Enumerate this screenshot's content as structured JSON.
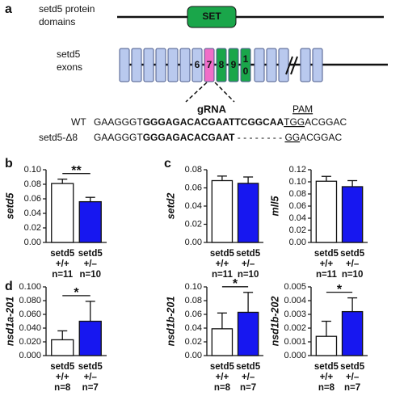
{
  "panel_labels": [
    "a",
    "b",
    "c",
    "d"
  ],
  "diagram": {
    "protein_label": [
      "setd5 protein",
      "domains"
    ],
    "domain": "SET",
    "exon_label": [
      "setd5",
      "exons"
    ],
    "exon_numbers": [
      "6",
      "7",
      "8",
      "9"
    ],
    "exon_10": [
      "1",
      "0"
    ],
    "grna": "gRNA",
    "pam": "PAM",
    "wt_label": "WT",
    "wt_sequence": [
      "GAAGGGT",
      "GGGAGACACGAATTCGGCAA",
      "TGG",
      "ACGGAC"
    ],
    "mut_label": "setd5-Δ8",
    "mut_sequence": [
      "GAAGGGT",
      "GGGAGACACGAAT",
      " - - - - - - - - ",
      "GG",
      "ACGGAC"
    ]
  },
  "chart_data": [
    {
      "type": "bar",
      "ylabel": "setd5",
      "categories": [
        [
          "setd5",
          "+/+",
          "n=11"
        ],
        [
          "setd5",
          "+/–",
          "n=10"
        ]
      ],
      "values": [
        0.081,
        0.056
      ],
      "errors": [
        0.006,
        0.006
      ],
      "colors": [
        "#ffffff",
        "#1717f0"
      ],
      "significance": "**",
      "ylim": [
        0,
        0.1
      ],
      "yticks": [
        {
          "value": 0,
          "label": "0.00"
        },
        {
          "value": 0.02,
          "label": "0.02"
        },
        {
          "value": 0.04,
          "label": "0.04"
        },
        {
          "value": 0.06,
          "label": "0.06"
        },
        {
          "value": 0.08,
          "label": "0.08"
        },
        {
          "value": 0.1,
          "label": "0.10"
        }
      ]
    },
    {
      "type": "bar",
      "ylabel": "setd2",
      "categories": [
        [
          "setd5",
          "+/+",
          "n=11"
        ],
        [
          "setd5",
          "+/–",
          "n=10"
        ]
      ],
      "values": [
        0.068,
        0.065
      ],
      "errors": [
        0.005,
        0.007
      ],
      "colors": [
        "#ffffff",
        "#1717f0"
      ],
      "ylim": [
        0,
        0.08
      ],
      "yticks": [
        {
          "value": 0,
          "label": "0.00"
        },
        {
          "value": 0.02,
          "label": "0.02"
        },
        {
          "value": 0.04,
          "label": "0.04"
        },
        {
          "value": 0.06,
          "label": "0.06"
        },
        {
          "value": 0.08,
          "label": "0.08"
        }
      ]
    },
    {
      "type": "bar",
      "ylabel": "mll5",
      "categories": [
        [
          "setd5",
          "+/+",
          "n=11"
        ],
        [
          "setd5",
          "+/–",
          "n=10"
        ]
      ],
      "values": [
        0.101,
        0.092
      ],
      "errors": [
        0.008,
        0.01
      ],
      "colors": [
        "#ffffff",
        "#1717f0"
      ],
      "ylim": [
        0,
        0.12
      ],
      "yticks": [
        {
          "value": 0,
          "label": "0.00"
        },
        {
          "value": 0.02,
          "label": "0.02"
        },
        {
          "value": 0.04,
          "label": "0.04"
        },
        {
          "value": 0.06,
          "label": "0.06"
        },
        {
          "value": 0.08,
          "label": "0.08"
        },
        {
          "value": 0.1,
          "label": "0.10"
        },
        {
          "value": 0.12,
          "label": "0.12"
        }
      ]
    },
    {
      "type": "bar",
      "ylabel": "nsd1a-201",
      "categories": [
        [
          "setd5",
          "+/+",
          "n=8"
        ],
        [
          "setd5",
          "+/–",
          "n=7"
        ]
      ],
      "values": [
        0.023,
        0.05
      ],
      "errors": [
        0.013,
        0.029
      ],
      "colors": [
        "#ffffff",
        "#1717f0"
      ],
      "significance": "*",
      "ylim": [
        0,
        0.1
      ],
      "yticks": [
        {
          "value": 0,
          "label": "0.000"
        },
        {
          "value": 0.02,
          "label": "0.020"
        },
        {
          "value": 0.04,
          "label": "0.040"
        },
        {
          "value": 0.06,
          "label": "0.060"
        },
        {
          "value": 0.08,
          "label": "0.080"
        },
        {
          "value": 0.1,
          "label": "0.100"
        }
      ]
    },
    {
      "type": "bar",
      "ylabel": "nsd1b-201",
      "categories": [
        [
          "setd5",
          "+/+",
          "n=8"
        ],
        [
          "setd5",
          "+/–",
          "n=7"
        ]
      ],
      "values": [
        0.039,
        0.063
      ],
      "errors": [
        0.023,
        0.029
      ],
      "colors": [
        "#ffffff",
        "#1717f0"
      ],
      "significance": "*",
      "ylim": [
        0,
        0.1
      ],
      "yticks": [
        {
          "value": 0,
          "label": "0.00"
        },
        {
          "value": 0.02,
          "label": "0.02"
        },
        {
          "value": 0.04,
          "label": "0.04"
        },
        {
          "value": 0.06,
          "label": "0.06"
        },
        {
          "value": 0.08,
          "label": "0.08"
        },
        {
          "value": 0.1,
          "label": "0.10"
        }
      ]
    },
    {
      "type": "bar",
      "ylabel": "nsd1b-202",
      "categories": [
        [
          "setd5",
          "+/+",
          "n=8"
        ],
        [
          "setd5",
          "+/–",
          "n=7"
        ]
      ],
      "values": [
        0.0014,
        0.0032
      ],
      "errors": [
        0.0011,
        0.001
      ],
      "colors": [
        "#ffffff",
        "#1717f0"
      ],
      "significance": "*",
      "ylim": [
        0,
        0.005
      ],
      "yticks": [
        {
          "value": 0,
          "label": "0.000"
        },
        {
          "value": 0.001,
          "label": "0.001"
        },
        {
          "value": 0.002,
          "label": "0.002"
        },
        {
          "value": 0.003,
          "label": "0.003"
        },
        {
          "value": 0.004,
          "label": "0.004"
        },
        {
          "value": 0.005,
          "label": "0.005"
        }
      ]
    }
  ]
}
